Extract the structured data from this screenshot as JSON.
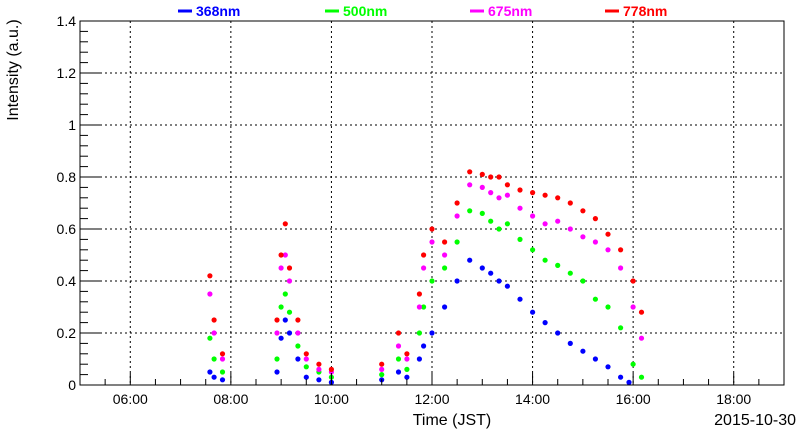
{
  "chart_data": {
    "type": "scatter",
    "title": "",
    "xlabel": "Time (JST)",
    "ylabel": "Intensity (a.u.)",
    "date_label": "2015-10-30",
    "xlim": [
      "05:00",
      "19:00"
    ],
    "ylim": [
      0,
      1.4
    ],
    "x_ticks": [
      "06:00",
      "08:00",
      "10:00",
      "12:00",
      "14:00",
      "16:00",
      "18:00"
    ],
    "y_ticks": [
      "0",
      "0.2",
      "0.4",
      "0.6",
      "0.8",
      "1",
      "1.2",
      "1.4"
    ],
    "grid": true,
    "legend_position": "top",
    "series": [
      {
        "name": "368nm",
        "color": "#0000ff",
        "points": [
          [
            "07:35",
            0.05
          ],
          [
            "07:40",
            0.03
          ],
          [
            "07:50",
            0.02
          ],
          [
            "08:55",
            0.05
          ],
          [
            "09:00",
            0.18
          ],
          [
            "09:05",
            0.25
          ],
          [
            "09:10",
            0.2
          ],
          [
            "09:20",
            0.1
          ],
          [
            "09:30",
            0.03
          ],
          [
            "09:45",
            0.02
          ],
          [
            "10:00",
            0.01
          ],
          [
            "11:00",
            0.02
          ],
          [
            "11:20",
            0.05
          ],
          [
            "11:30",
            0.03
          ],
          [
            "11:45",
            0.1
          ],
          [
            "11:50",
            0.15
          ],
          [
            "12:00",
            0.2
          ],
          [
            "12:15",
            0.3
          ],
          [
            "12:30",
            0.4
          ],
          [
            "12:45",
            0.48
          ],
          [
            "13:00",
            0.45
          ],
          [
            "13:10",
            0.43
          ],
          [
            "13:20",
            0.4
          ],
          [
            "13:30",
            0.38
          ],
          [
            "13:45",
            0.33
          ],
          [
            "14:00",
            0.28
          ],
          [
            "14:15",
            0.24
          ],
          [
            "14:30",
            0.2
          ],
          [
            "14:45",
            0.16
          ],
          [
            "15:00",
            0.13
          ],
          [
            "15:15",
            0.1
          ],
          [
            "15:30",
            0.07
          ],
          [
            "15:45",
            0.03
          ],
          [
            "15:55",
            0.01
          ]
        ]
      },
      {
        "name": "500nm",
        "color": "#00ff00",
        "points": [
          [
            "07:35",
            0.18
          ],
          [
            "07:40",
            0.1
          ],
          [
            "07:50",
            0.05
          ],
          [
            "08:55",
            0.1
          ],
          [
            "09:00",
            0.3
          ],
          [
            "09:05",
            0.35
          ],
          [
            "09:10",
            0.28
          ],
          [
            "09:20",
            0.15
          ],
          [
            "09:30",
            0.07
          ],
          [
            "09:45",
            0.05
          ],
          [
            "10:00",
            0.03
          ],
          [
            "11:00",
            0.04
          ],
          [
            "11:20",
            0.1
          ],
          [
            "11:30",
            0.06
          ],
          [
            "11:45",
            0.2
          ],
          [
            "11:50",
            0.3
          ],
          [
            "12:00",
            0.4
          ],
          [
            "12:15",
            0.45
          ],
          [
            "12:30",
            0.55
          ],
          [
            "12:45",
            0.67
          ],
          [
            "13:00",
            0.66
          ],
          [
            "13:10",
            0.63
          ],
          [
            "13:20",
            0.6
          ],
          [
            "13:30",
            0.62
          ],
          [
            "13:45",
            0.56
          ],
          [
            "14:00",
            0.52
          ],
          [
            "14:15",
            0.48
          ],
          [
            "14:30",
            0.46
          ],
          [
            "14:45",
            0.43
          ],
          [
            "15:00",
            0.4
          ],
          [
            "15:15",
            0.33
          ],
          [
            "15:30",
            0.3
          ],
          [
            "15:45",
            0.22
          ],
          [
            "16:00",
            0.08
          ],
          [
            "16:10",
            0.03
          ]
        ]
      },
      {
        "name": "675nm",
        "color": "#ff00ff",
        "points": [
          [
            "07:35",
            0.35
          ],
          [
            "07:40",
            0.2
          ],
          [
            "07:50",
            0.1
          ],
          [
            "08:55",
            0.2
          ],
          [
            "09:00",
            0.45
          ],
          [
            "09:05",
            0.5
          ],
          [
            "09:10",
            0.4
          ],
          [
            "09:20",
            0.2
          ],
          [
            "09:30",
            0.1
          ],
          [
            "09:45",
            0.06
          ],
          [
            "10:00",
            0.05
          ],
          [
            "11:00",
            0.06
          ],
          [
            "11:20",
            0.15
          ],
          [
            "11:30",
            0.1
          ],
          [
            "11:45",
            0.3
          ],
          [
            "11:50",
            0.45
          ],
          [
            "12:00",
            0.55
          ],
          [
            "12:15",
            0.5
          ],
          [
            "12:30",
            0.65
          ],
          [
            "12:45",
            0.77
          ],
          [
            "13:00",
            0.76
          ],
          [
            "13:10",
            0.74
          ],
          [
            "13:20",
            0.72
          ],
          [
            "13:30",
            0.73
          ],
          [
            "13:45",
            0.68
          ],
          [
            "14:00",
            0.65
          ],
          [
            "14:15",
            0.62
          ],
          [
            "14:30",
            0.63
          ],
          [
            "14:45",
            0.6
          ],
          [
            "15:00",
            0.57
          ],
          [
            "15:15",
            0.55
          ],
          [
            "15:30",
            0.52
          ],
          [
            "15:45",
            0.45
          ],
          [
            "16:00",
            0.3
          ],
          [
            "16:10",
            0.18
          ]
        ]
      },
      {
        "name": "778nm",
        "color": "#ff0000",
        "points": [
          [
            "07:35",
            0.42
          ],
          [
            "07:40",
            0.25
          ],
          [
            "07:50",
            0.12
          ],
          [
            "08:55",
            0.25
          ],
          [
            "09:00",
            0.5
          ],
          [
            "09:05",
            0.62
          ],
          [
            "09:10",
            0.45
          ],
          [
            "09:20",
            0.25
          ],
          [
            "09:30",
            0.12
          ],
          [
            "09:45",
            0.08
          ],
          [
            "10:00",
            0.06
          ],
          [
            "11:00",
            0.08
          ],
          [
            "11:20",
            0.2
          ],
          [
            "11:30",
            0.12
          ],
          [
            "11:45",
            0.35
          ],
          [
            "11:50",
            0.5
          ],
          [
            "12:00",
            0.6
          ],
          [
            "12:15",
            0.55
          ],
          [
            "12:30",
            0.7
          ],
          [
            "12:45",
            0.82
          ],
          [
            "13:00",
            0.81
          ],
          [
            "13:10",
            0.8
          ],
          [
            "13:20",
            0.8
          ],
          [
            "13:30",
            0.77
          ],
          [
            "13:45",
            0.75
          ],
          [
            "14:00",
            0.74
          ],
          [
            "14:15",
            0.73
          ],
          [
            "14:30",
            0.72
          ],
          [
            "14:45",
            0.7
          ],
          [
            "15:00",
            0.67
          ],
          [
            "15:15",
            0.64
          ],
          [
            "15:30",
            0.58
          ],
          [
            "15:45",
            0.52
          ],
          [
            "16:00",
            0.4
          ],
          [
            "16:10",
            0.28
          ]
        ]
      }
    ]
  }
}
